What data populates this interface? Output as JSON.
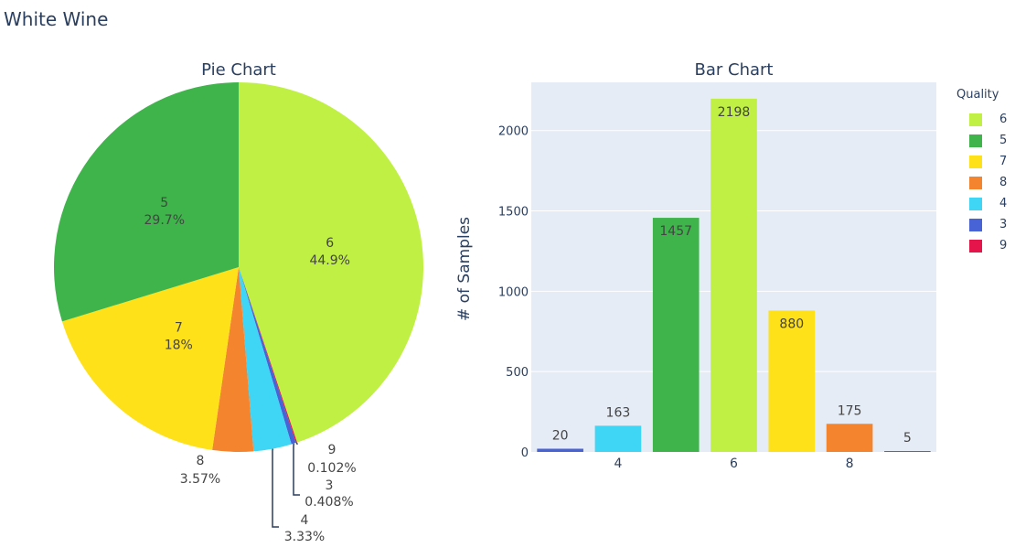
{
  "title": "White Wine",
  "colors": {
    "3": "#4863d6",
    "4": "#3fd5f5",
    "5": "#3eb44b",
    "6": "#bff043",
    "7": "#ffe11a",
    "8": "#f5842f",
    "9": "#e5154b",
    "axis_text": "#2a3f5f",
    "bar_bg": "#e5ecf6",
    "grid": "#ffffff",
    "pie_line": "#2a3f5f"
  },
  "legend": {
    "title": "Quality",
    "items": [
      "6",
      "5",
      "7",
      "8",
      "4",
      "3",
      "9"
    ]
  },
  "chart_data": [
    {
      "type": "pie",
      "title": "Pie Chart",
      "slices": [
        {
          "label": "6",
          "value": 2198,
          "percent_text": "44.9%"
        },
        {
          "label": "9",
          "value": 5,
          "percent_text": "0.102%"
        },
        {
          "label": "3",
          "value": 20,
          "percent_text": "0.408%"
        },
        {
          "label": "4",
          "value": 163,
          "percent_text": "3.33%"
        },
        {
          "label": "8",
          "value": 175,
          "percent_text": "3.57%"
        },
        {
          "label": "7",
          "value": 880,
          "percent_text": "18%"
        },
        {
          "label": "5",
          "value": 1457,
          "percent_text": "29.7%"
        }
      ],
      "direction": "clockwise",
      "start": "top"
    },
    {
      "type": "bar",
      "title": "Bar Chart",
      "ylabel": "# of Samples",
      "categories": [
        "3",
        "4",
        "5",
        "6",
        "7",
        "8",
        "9"
      ],
      "values": [
        20,
        163,
        1457,
        2198,
        880,
        175,
        5
      ],
      "xticks": [
        "4",
        "6",
        "8"
      ],
      "yticks": [
        "0",
        "500",
        "1000",
        "1500",
        "2000"
      ],
      "ylim": [
        0,
        2300
      ]
    }
  ]
}
